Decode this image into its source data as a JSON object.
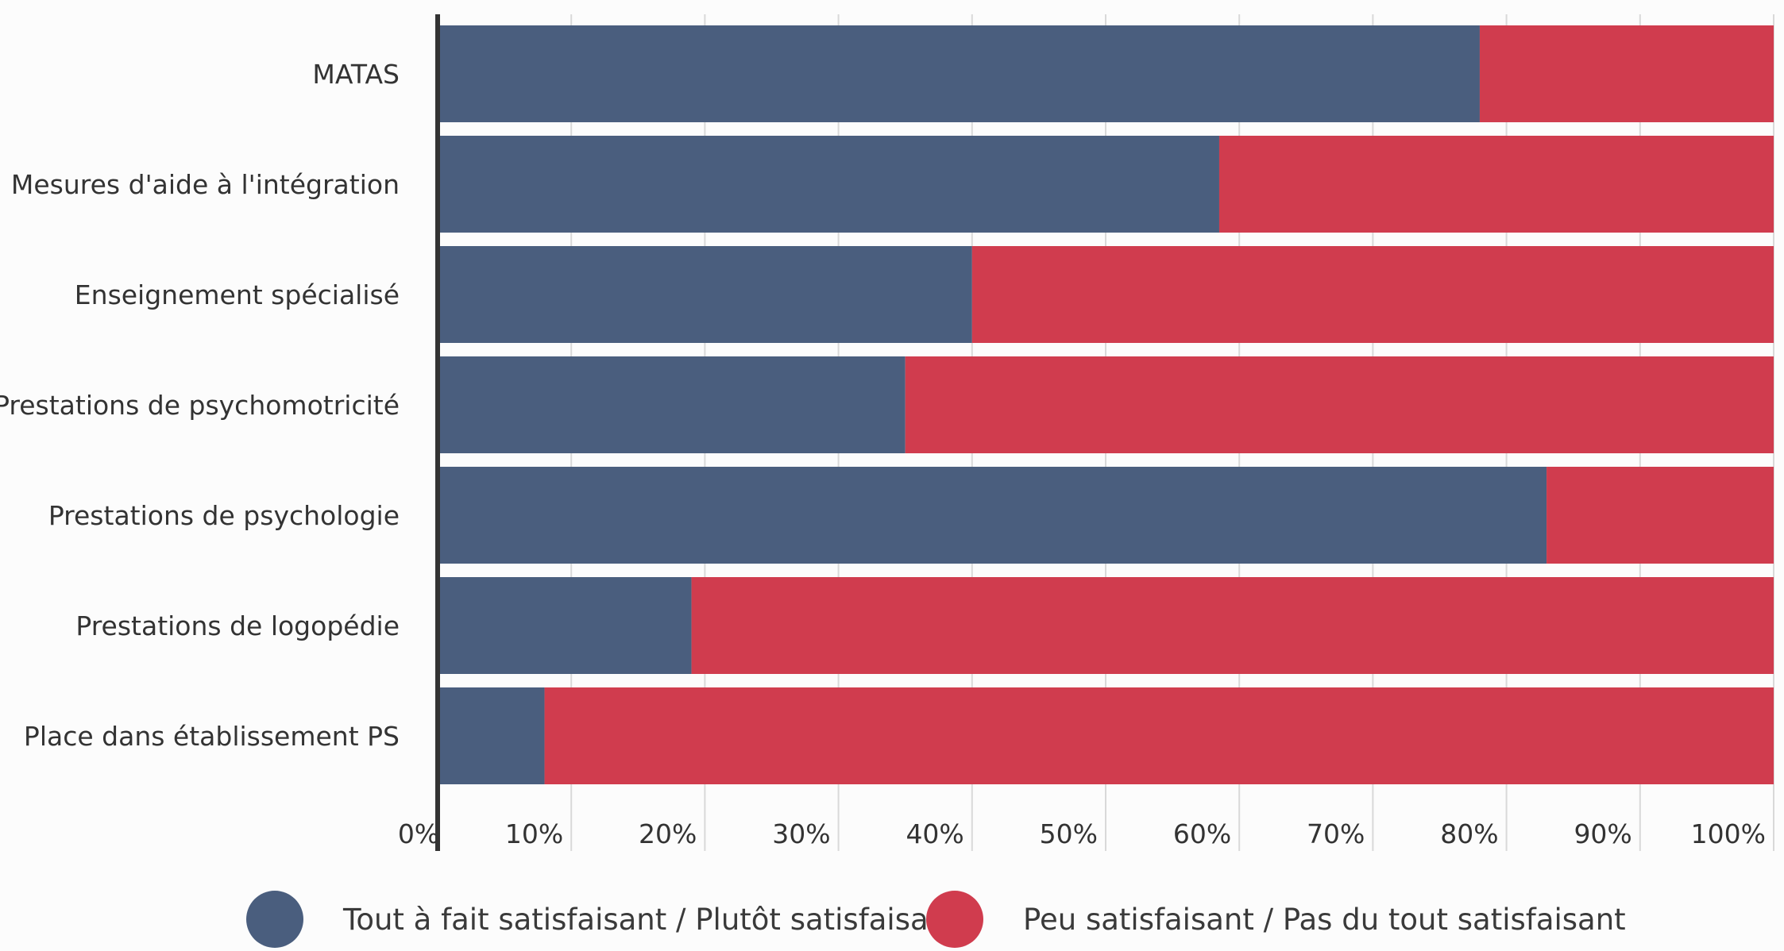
{
  "colors": {
    "satisfied": "#4a5e7e",
    "unsatisfied": "#d03c4e",
    "grid": "#d9d9d9",
    "axis": "#333333",
    "text": "#333333",
    "background": "#fcfcfc"
  },
  "chart_data": {
    "type": "bar",
    "orientation": "horizontal",
    "stacked": "percent",
    "categories": [
      "MATAS",
      "Mesures d'aide à l'intégration",
      "Enseignement spécialisé",
      "Prestations de psychomotricité",
      "Prestations de psychologie",
      "Prestations de logopédie",
      "Place dans établissement PS"
    ],
    "series": [
      {
        "name": "Tout à fait satisfaisant / Plutôt satisfaisant",
        "color": "#4a5e7e",
        "values": [
          78,
          58.5,
          40,
          35,
          83,
          19,
          8
        ]
      },
      {
        "name": "Peu satisfaisant / Pas du tout satisfaisant",
        "color": "#d03c4e",
        "values": [
          22,
          41.5,
          60,
          65,
          17,
          81,
          92
        ]
      }
    ],
    "xlim": [
      0,
      100
    ],
    "xticks": [
      "0%",
      "10%",
      "20%",
      "30%",
      "40%",
      "50%",
      "60%",
      "70%",
      "80%",
      "90%",
      "100%"
    ],
    "grid": "vertical",
    "legend_position": "bottom"
  }
}
